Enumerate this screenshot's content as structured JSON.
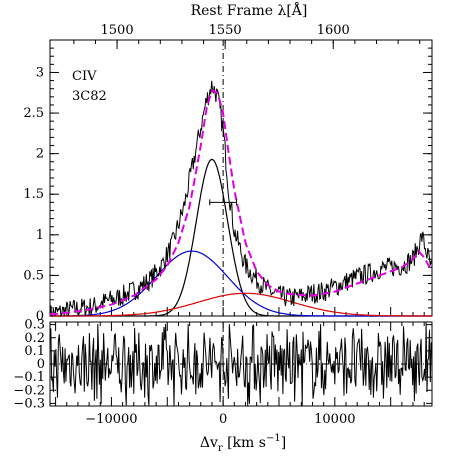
{
  "chart_data": [
    {
      "type": "line",
      "panel": "main",
      "title": "",
      "top_axis_label": "Rest Frame λ[Å]",
      "top_ticks": [
        "1500",
        "1550",
        "1600"
      ],
      "top_tick_values_angstrom": [
        1500,
        1550,
        1600
      ],
      "annotation_line1": "CIV",
      "annotation_line2": "3C82",
      "xlim": [
        -15500,
        18700
      ],
      "ylim": [
        0,
        3.4
      ],
      "yticks": [
        "0",
        "0.5",
        "1",
        "1.5",
        "2",
        "2.5",
        "3"
      ],
      "ytick_values": [
        0,
        0.5,
        1,
        1.5,
        2,
        2.5,
        3
      ],
      "reference_line_x": 0,
      "error_bar": {
        "x": 0,
        "y": 1.4,
        "xerr": 1200
      },
      "series": [
        {
          "kind": "observed_spectrum",
          "color": "#000000",
          "style": "solid",
          "x": [
            -15500,
            -14500,
            -13500,
            -12500,
            -11500,
            -10500,
            -9500,
            -8500,
            -7500,
            -6500,
            -5500,
            -4500,
            -3500,
            -2500,
            -1500,
            -1000,
            -500,
            0,
            500,
            1000,
            2000,
            3000,
            4000,
            5000,
            6000,
            7000,
            8000,
            9000,
            10000,
            11000,
            12000,
            13000,
            14000,
            15000,
            16000,
            17000,
            17800,
            18300,
            18700
          ],
          "y": [
            0.02,
            0.05,
            0.08,
            0.1,
            0.12,
            0.18,
            0.22,
            0.28,
            0.35,
            0.45,
            0.62,
            0.9,
            1.35,
            2.0,
            2.65,
            2.85,
            2.7,
            2.3,
            1.55,
            1.05,
            0.62,
            0.45,
            0.32,
            0.25,
            0.22,
            0.24,
            0.28,
            0.3,
            0.36,
            0.42,
            0.48,
            0.52,
            0.58,
            0.6,
            0.62,
            0.7,
            0.98,
            0.75,
            0.55
          ]
        },
        {
          "kind": "total_model",
          "color": "#e000e0",
          "style": "dashed",
          "x": [
            -15500,
            -14000,
            -12000,
            -10000,
            -8000,
            -6000,
            -5000,
            -4000,
            -3000,
            -2000,
            -1500,
            -1000,
            -500,
            0,
            500,
            1000,
            2000,
            3000,
            4000,
            5000,
            6000,
            8000,
            10000,
            12000,
            14000,
            16000,
            17000,
            17500,
            18000,
            18700
          ],
          "y": [
            0.02,
            0.04,
            0.08,
            0.14,
            0.25,
            0.45,
            0.62,
            0.9,
            1.35,
            2.1,
            2.55,
            2.78,
            2.75,
            2.5,
            2.0,
            1.55,
            0.9,
            0.55,
            0.38,
            0.3,
            0.27,
            0.25,
            0.3,
            0.4,
            0.5,
            0.6,
            0.7,
            0.8,
            0.72,
            0.55
          ]
        },
        {
          "kind": "narrow_gaussian",
          "color": "#000000",
          "style": "solid",
          "center": -1000,
          "fwhm": 3300,
          "amplitude": 1.93
        },
        {
          "kind": "broad_gaussian_blue",
          "color": "#0000dd",
          "style": "solid",
          "center": -2800,
          "fwhm": 7500,
          "amplitude": 0.8
        },
        {
          "kind": "red_component",
          "color": "#dd0000",
          "style": "solid",
          "center": 2000,
          "fwhm": 10000,
          "amplitude": 0.28
        }
      ]
    },
    {
      "type": "line",
      "panel": "residuals",
      "xlabel": "Δv_r [km s⁻¹]",
      "xlabel_main": "Δv",
      "xlabel_sub": "r",
      "xlabel_rest": " [km s",
      "xlabel_sup": "−1",
      "xlabel_close": "]",
      "xticks": [
        "−10000",
        "0",
        "10000"
      ],
      "xtick_values": [
        -10000,
        0,
        10000
      ],
      "xlim": [
        -15500,
        18700
      ],
      "ylim": [
        -0.32,
        0.32
      ],
      "yticks": [
        "0.3",
        "0.2",
        "0.1",
        "0",
        "−0.1",
        "−0.2",
        "−0.3"
      ],
      "ytick_values": [
        0.3,
        0.2,
        0.1,
        0,
        -0.1,
        -0.2,
        -0.3
      ],
      "zero_line": 0,
      "reference_line_x": 0,
      "series": [
        {
          "kind": "residuals",
          "color": "#000000",
          "style": "solid",
          "amplitude": 0.3
        }
      ]
    }
  ]
}
